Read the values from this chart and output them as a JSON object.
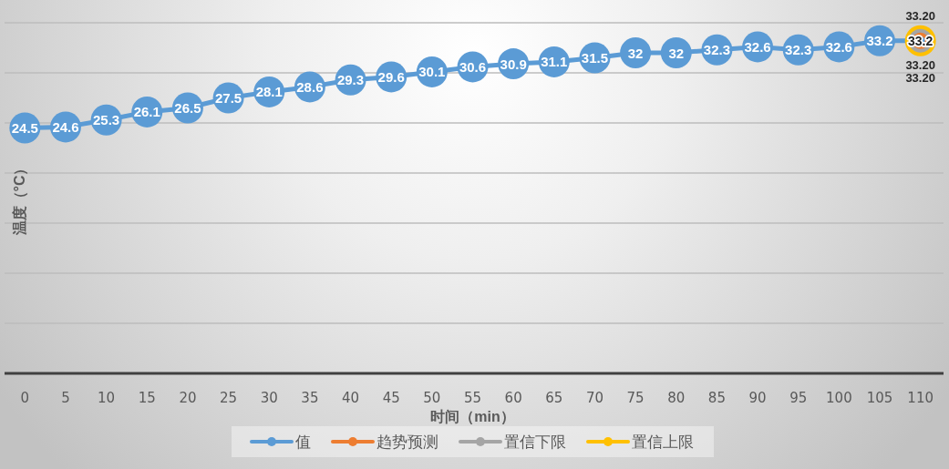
{
  "chart_data": {
    "type": "line",
    "xlabel": "时间（min）",
    "ylabel": "温度（°C）",
    "categories": [
      "0",
      "5",
      "10",
      "15",
      "20",
      "25",
      "30",
      "35",
      "40",
      "45",
      "50",
      "55",
      "60",
      "65",
      "70",
      "75",
      "80",
      "85",
      "90",
      "95",
      "100",
      "105",
      "110"
    ],
    "ylim": [
      0,
      35
    ],
    "yticks": [
      0,
      5,
      10,
      15,
      20,
      25,
      30,
      35
    ],
    "tick_labels": "x",
    "grid": "y",
    "legend": "bottom",
    "marker": "circle",
    "line_style": "solid",
    "data_labels": true,
    "series": [
      {
        "name": "值",
        "color": "#5b9bd5",
        "values": [
          24.5,
          24.6,
          25.3,
          26.1,
          26.5,
          27.5,
          28.1,
          28.6,
          29.3,
          29.6,
          30.1,
          30.6,
          30.9,
          31.1,
          31.5,
          32,
          32,
          32.3,
          32.6,
          32.3,
          32.6,
          33.2,
          33.2
        ]
      },
      {
        "name": "趋势预测",
        "color": "#ed7d31",
        "values": [
          null,
          null,
          null,
          null,
          null,
          null,
          null,
          null,
          null,
          null,
          null,
          null,
          null,
          null,
          null,
          null,
          null,
          null,
          null,
          null,
          null,
          null,
          33.2
        ],
        "value_labels": [
          null,
          null,
          null,
          null,
          null,
          null,
          null,
          null,
          null,
          null,
          null,
          null,
          null,
          null,
          null,
          null,
          null,
          null,
          null,
          null,
          null,
          null,
          "33.20"
        ]
      },
      {
        "name": "置信下限",
        "color": "#a5a5a5",
        "values": [
          null,
          null,
          null,
          null,
          null,
          null,
          null,
          null,
          null,
          null,
          null,
          null,
          null,
          null,
          null,
          null,
          null,
          null,
          null,
          null,
          null,
          null,
          33.2
        ],
        "value_labels": [
          null,
          null,
          null,
          null,
          null,
          null,
          null,
          null,
          null,
          null,
          null,
          null,
          null,
          null,
          null,
          null,
          null,
          null,
          null,
          null,
          null,
          null,
          "33.20"
        ]
      },
      {
        "name": "置信上限",
        "color": "#ffc000",
        "values": [
          null,
          null,
          null,
          null,
          null,
          null,
          null,
          null,
          null,
          null,
          null,
          null,
          null,
          null,
          null,
          null,
          null,
          null,
          null,
          null,
          null,
          null,
          33.2
        ],
        "value_labels": [
          null,
          null,
          null,
          null,
          null,
          null,
          null,
          null,
          null,
          null,
          null,
          null,
          null,
          null,
          null,
          null,
          null,
          null,
          null,
          null,
          null,
          null,
          "33.20"
        ]
      }
    ]
  }
}
